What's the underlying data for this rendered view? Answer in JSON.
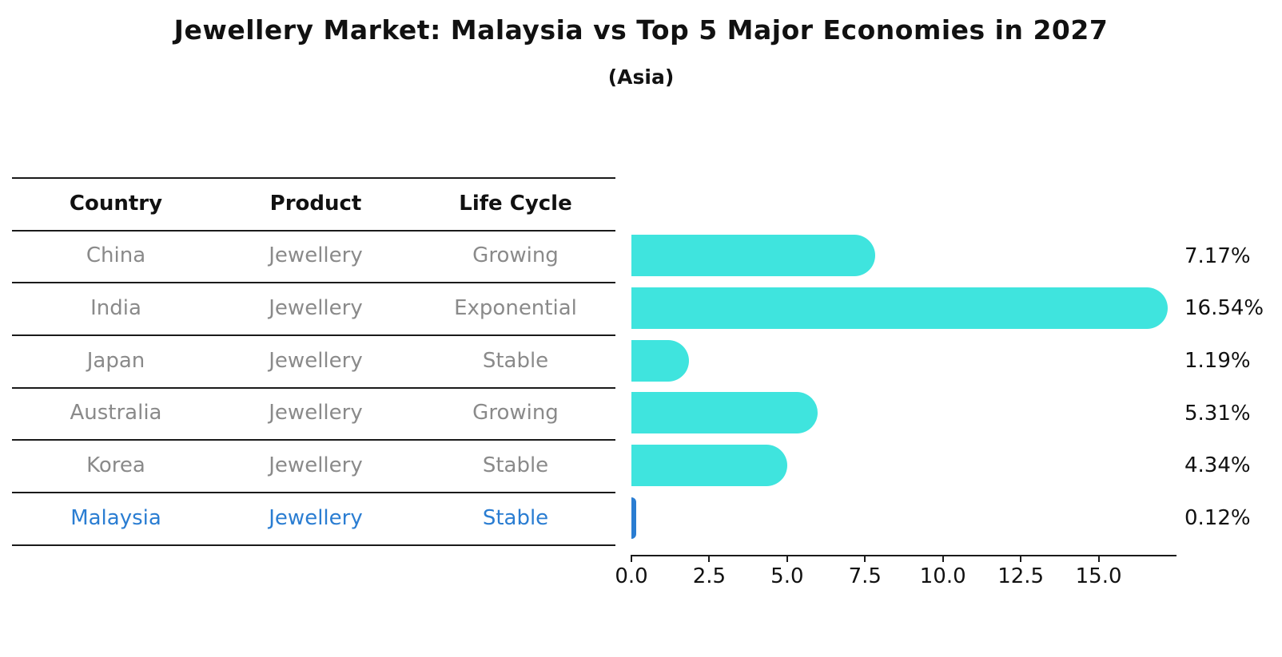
{
  "title": "Jewellery Market: Malaysia vs Top 5 Major Economies in 2027",
  "subtitle": "(Asia)",
  "table": {
    "headers": {
      "country": "Country",
      "product": "Product",
      "life_cycle": "Life Cycle"
    },
    "rows": [
      {
        "country": "China",
        "product": "Jewellery",
        "life_cycle": "Growing",
        "highlight": false
      },
      {
        "country": "India",
        "product": "Jewellery",
        "life_cycle": "Exponential",
        "highlight": false
      },
      {
        "country": "Japan",
        "product": "Jewellery",
        "life_cycle": "Stable",
        "highlight": false
      },
      {
        "country": "Australia",
        "product": "Jewellery",
        "life_cycle": "Growing",
        "highlight": false
      },
      {
        "country": "Korea",
        "product": "Jewellery",
        "life_cycle": "Stable",
        "highlight": false
      },
      {
        "country": "Malaysia",
        "product": "Jewellery",
        "life_cycle": "Stable",
        "highlight": true
      }
    ]
  },
  "chart_data": {
    "type": "bar",
    "orientation": "horizontal",
    "title": "Jewellery Market: Malaysia vs Top 5 Major Economies in 2027",
    "subtitle": "(Asia)",
    "categories": [
      "China",
      "India",
      "Japan",
      "Australia",
      "Korea",
      "Malaysia"
    ],
    "values": [
      7.17,
      16.54,
      1.19,
      5.31,
      4.34,
      0.12
    ],
    "value_labels": [
      "7.17%",
      "16.54%",
      "1.19%",
      "5.31%",
      "4.34%",
      "0.12%"
    ],
    "x_ticks": [
      "0.0",
      "2.5",
      "5.0",
      "7.5",
      "10.0",
      "12.5",
      "15.0"
    ],
    "xlim": [
      0,
      17.5
    ],
    "grid": false,
    "legend": "none",
    "bar_color": "#3fe4de",
    "highlight_color": "#2a7dd2",
    "highlight_index": 5,
    "highlight_category": "Malaysia"
  },
  "colors": {
    "bar": "#3fe4de",
    "highlight": "#2a7dd2",
    "muted_text": "#8a8a8a",
    "text": "#111111",
    "line": "#1a1a1a",
    "background": "#ffffff"
  }
}
